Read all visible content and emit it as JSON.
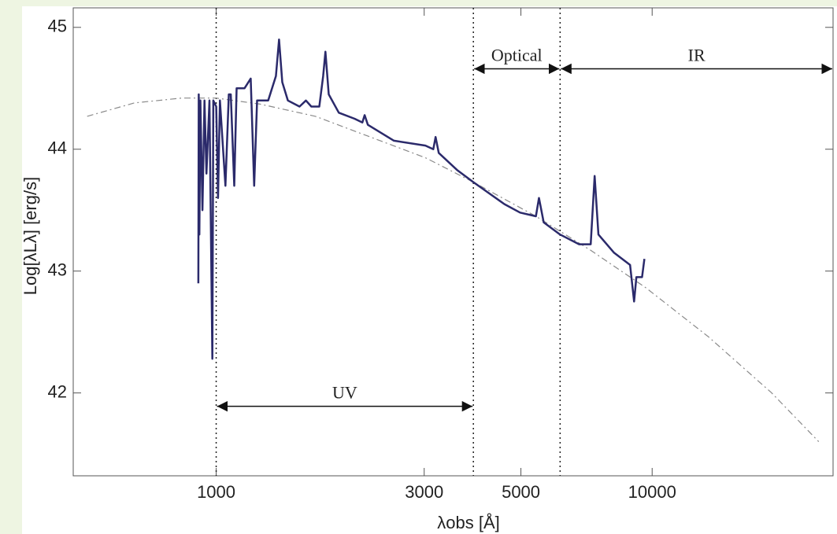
{
  "chart_data": {
    "type": "line",
    "xlabel": "λobs [Å]",
    "ylabel": "Log[λLλ] [erg/s]",
    "xscale": "log",
    "xlim": [
      470,
      26000
    ],
    "ylim": [
      41.32,
      45.16
    ],
    "xticks": [
      1000,
      3000,
      5000,
      10000
    ],
    "yticks": [
      42,
      43,
      44,
      45
    ],
    "vlines": [
      1000,
      3890,
      6150
    ],
    "annotations": [
      {
        "text": "UV",
        "x": [
          1000,
          3890
        ],
        "y": 41.89
      },
      {
        "text": "Optical",
        "x": [
          3890,
          6150
        ],
        "y": 44.66
      },
      {
        "text": "IR",
        "x": [
          6150,
          26000
        ],
        "y": 44.66
      }
    ],
    "series": [
      {
        "color": "#2b2a6b",
        "style": "solid",
        "x": [
          910,
          912,
          915,
          920,
          930,
          940,
          950,
          965,
          980,
          985,
          1000,
          1010,
          1020,
          1050,
          1069,
          1080,
          1100,
          1114,
          1161,
          1200,
          1222,
          1241,
          1316,
          1371,
          1394,
          1418,
          1460,
          1553,
          1606,
          1653,
          1724,
          1759,
          1781,
          1812,
          1911,
          2078,
          2164,
          2190,
          2228,
          2557,
          3020,
          3148,
          3186,
          3240,
          3568,
          3890,
          4580,
          4978,
          5411,
          5500,
          5640,
          6150,
          6800,
          7230,
          7380,
          7530,
          8180,
          8900,
          9090,
          9200,
          9480,
          9600
        ],
        "values": [
          42.9,
          44.45,
          43.3,
          44.4,
          43.5,
          44.4,
          43.8,
          44.4,
          42.28,
          44.4,
          44.35,
          43.6,
          44.4,
          43.7,
          44.45,
          44.45,
          43.7,
          44.5,
          44.5,
          44.58,
          43.7,
          44.4,
          44.4,
          44.6,
          44.9,
          44.55,
          44.4,
          44.35,
          44.4,
          44.35,
          44.35,
          44.6,
          44.8,
          44.45,
          44.3,
          44.25,
          44.22,
          44.28,
          44.2,
          44.07,
          44.03,
          44.0,
          44.1,
          43.97,
          43.83,
          43.73,
          43.55,
          43.48,
          43.45,
          43.6,
          43.4,
          43.3,
          43.22,
          43.22,
          43.78,
          43.3,
          43.15,
          43.05,
          42.75,
          42.95,
          42.95,
          43.1
        ]
      },
      {
        "color": "#8a8a8a",
        "style": "dashed",
        "x": [
          506,
          649,
          833,
          1000,
          1262,
          1689,
          2257,
          3020,
          3890,
          5411,
          7230,
          9700,
          13470,
          18800,
          24100
        ],
        "values": [
          44.27,
          44.38,
          44.42,
          44.42,
          44.37,
          44.27,
          44.1,
          43.93,
          43.73,
          43.45,
          43.17,
          42.86,
          42.46,
          42.0,
          41.6
        ]
      }
    ]
  }
}
